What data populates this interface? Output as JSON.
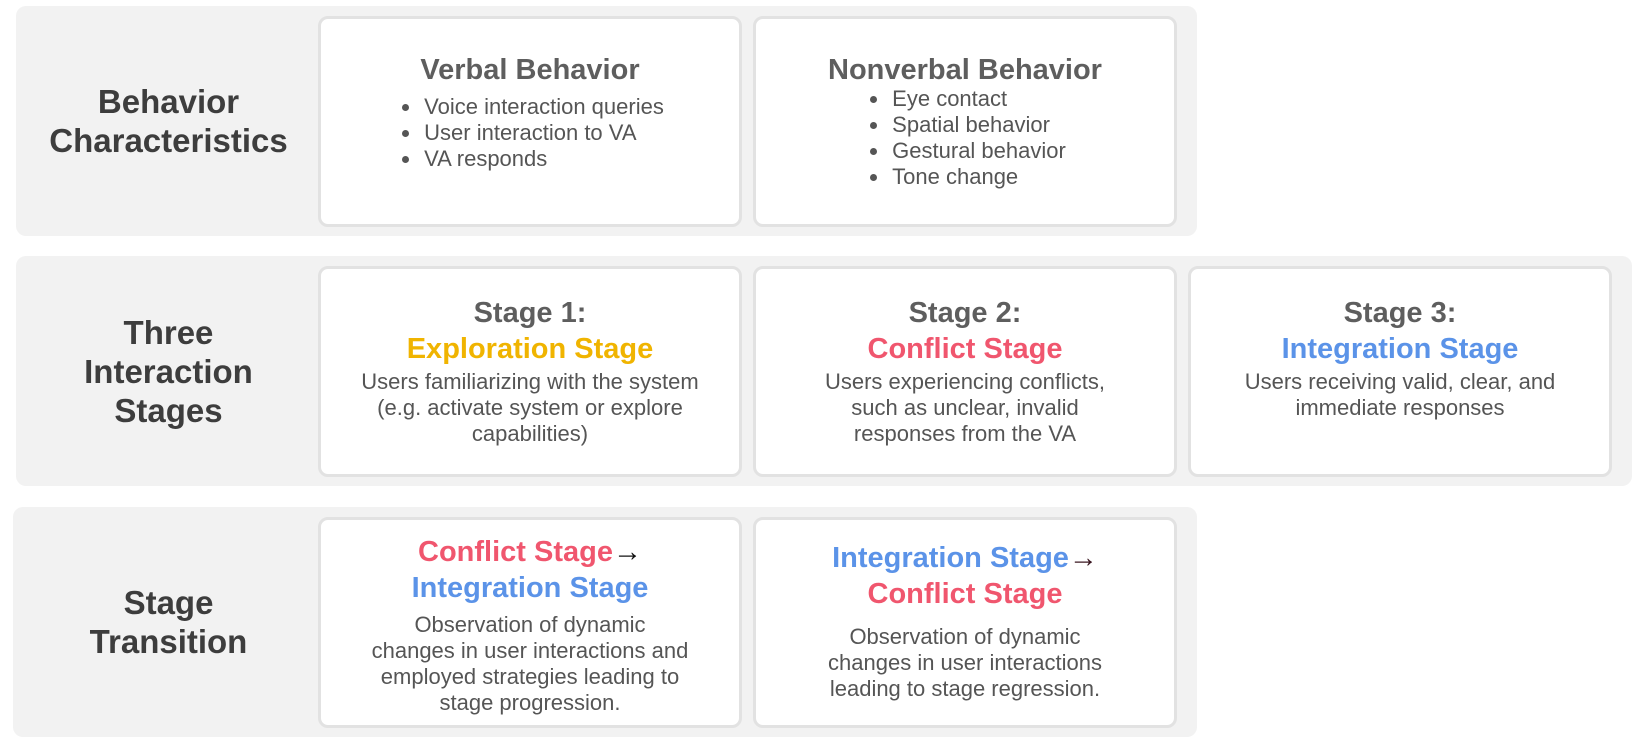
{
  "colors": {
    "exploration": "#f0b400",
    "conflict": "#f0566e",
    "integration": "#5b93e8",
    "arrow_dark": "#111111",
    "arrow_maroon": "#3a1620"
  },
  "rows": {
    "behavior": {
      "label": "Behavior\nCharacteristics",
      "cards": [
        {
          "title": "Verbal Behavior",
          "items": [
            "Voice interaction queries",
            "User interaction to VA",
            "VA responds"
          ]
        },
        {
          "title": "Nonverbal Behavior",
          "items": [
            "Eye contact",
            "Spatial behavior",
            "Gestural behavior",
            "Tone change"
          ]
        }
      ]
    },
    "stages": {
      "label": "Three\nInteraction\nStages",
      "cards": [
        {
          "number": "Stage 1:",
          "name": "Exploration Stage",
          "desc": "Users familiarizing with the system (e.g. activate system or explore capabilities)"
        },
        {
          "number": "Stage 2:",
          "name": "Conflict Stage",
          "desc": "Users experiencing conflicts, such as unclear, invalid responses from the VA"
        },
        {
          "number": "Stage 3:",
          "name": "Integration Stage",
          "desc": "Users receiving valid, clear, and immediate responses"
        }
      ]
    },
    "transition": {
      "label": "Stage\nTransition",
      "cards": [
        {
          "from": "Conflict Stage",
          "arrow": "→",
          "to": "Integration Stage",
          "desc": "Observation of dynamic changes in user interactions and employed strategies leading to stage progression."
        },
        {
          "from": "Integration Stage",
          "arrow": "→",
          "to": "Conflict Stage",
          "desc": "Observation of dynamic changes in user interactions leading to stage regression."
        }
      ]
    }
  }
}
